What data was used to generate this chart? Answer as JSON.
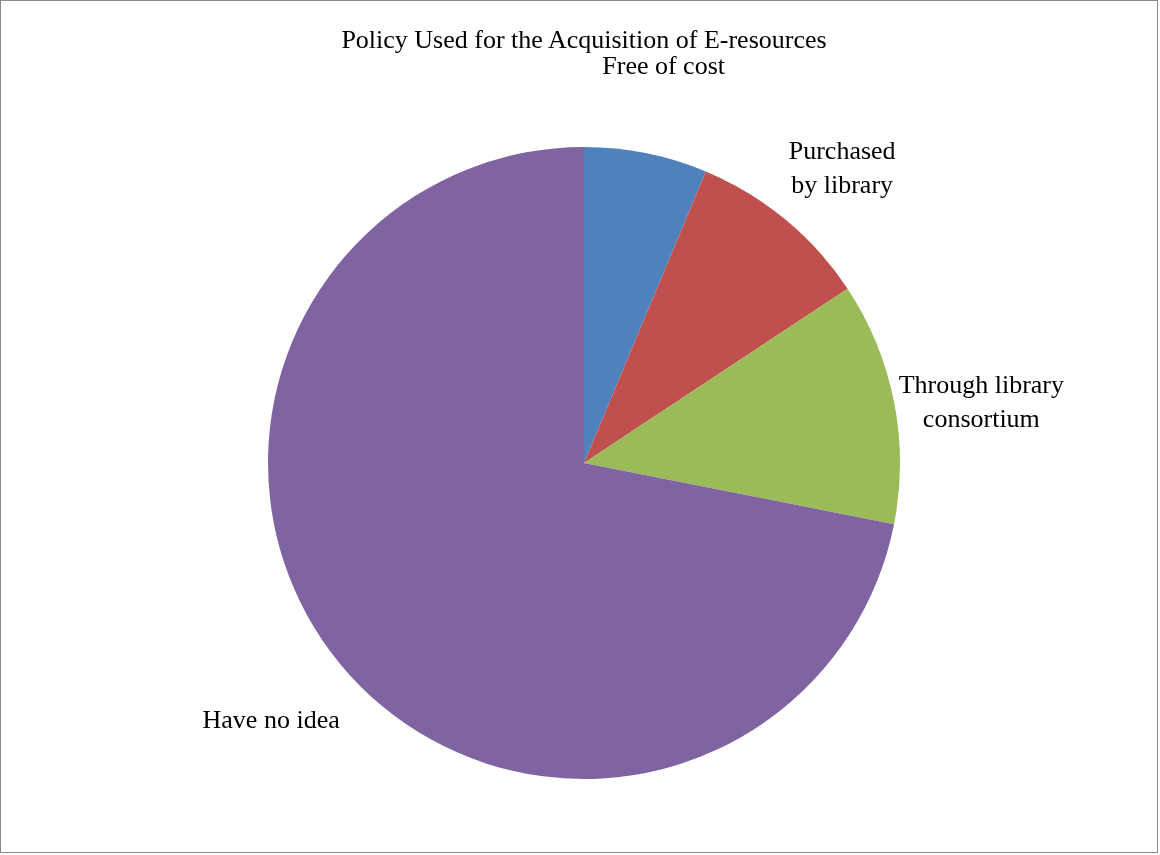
{
  "chart_data": {
    "type": "pie",
    "title": "Policy Used  for the Acquisition of E-resources",
    "categories": [
      "Free of cost",
      "Purchased by library",
      "Through library consortium",
      "Have no idea"
    ],
    "values": [
      6.3,
      9.4,
      12.4,
      71.9
    ],
    "colors": [
      "#4f81bd",
      "#c0504d",
      "#9bbb59",
      "#8064a2"
    ]
  }
}
